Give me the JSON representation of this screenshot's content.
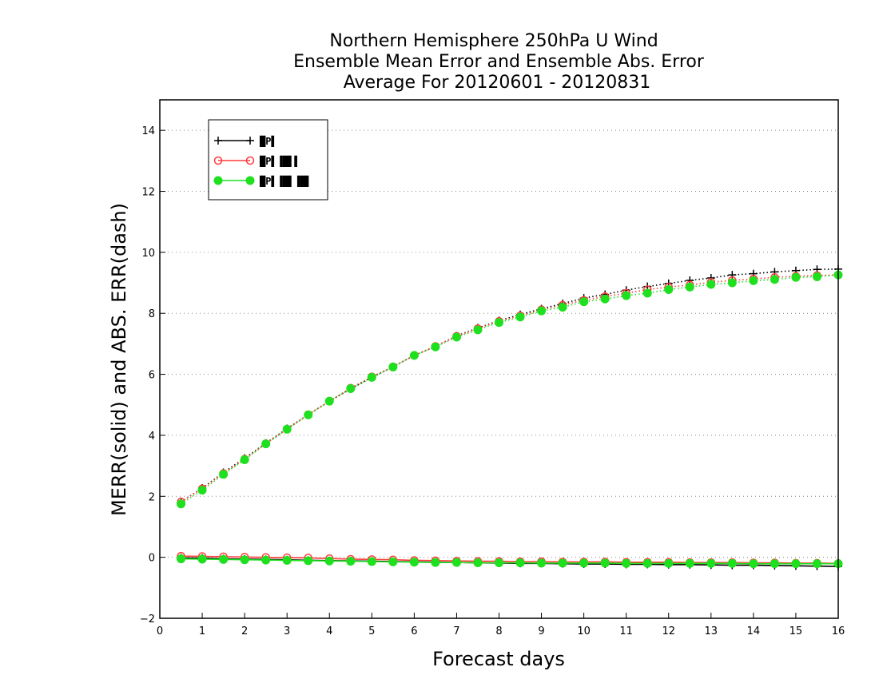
{
  "chart_data": {
    "type": "line",
    "title": [
      "Northern Hemisphere 250hPa U Wind",
      "Ensemble Mean Error and Ensemble Abs. Error",
      "Average For 20120601 - 20120831"
    ],
    "xlabel": "Forecast days",
    "ylabel": "MERR(solid) and ABS. ERR(dash)",
    "xlim": [
      0,
      16
    ],
    "ylim": [
      -2,
      15
    ],
    "xticks": [
      "0",
      "1",
      "2",
      "3",
      "4",
      "5",
      "6",
      "7",
      "8",
      "9",
      "10",
      "11",
      "12",
      "13",
      "14",
      "15",
      "16"
    ],
    "yticks": [
      "−2",
      "0",
      "2",
      "4",
      "6",
      "8",
      "10",
      "12",
      "14"
    ],
    "grid": "horizontal dotted",
    "legend_position": "top-left",
    "x": [
      0.5,
      1,
      1.5,
      2,
      2.5,
      3,
      3.5,
      4,
      4.5,
      5,
      5.5,
      6,
      6.5,
      7,
      7.5,
      8,
      8.5,
      9,
      9.5,
      10,
      10.5,
      11,
      11.5,
      12,
      12.5,
      13,
      13.5,
      14,
      14.5,
      15,
      15.5,
      16
    ],
    "series": [
      {
        "legend": "█P▌",
        "color": "#000000",
        "marker": "plus",
        "merr": [
          -0.02,
          -0.03,
          -0.05,
          -0.06,
          -0.07,
          -0.08,
          -0.1,
          -0.11,
          -0.12,
          -0.13,
          -0.14,
          -0.15,
          -0.16,
          -0.17,
          -0.18,
          -0.19,
          -0.2,
          -0.2,
          -0.21,
          -0.22,
          -0.22,
          -0.23,
          -0.23,
          -0.24,
          -0.24,
          -0.25,
          -0.26,
          -0.26,
          -0.27,
          -0.28,
          -0.29,
          -0.3
        ],
        "abs_err": [
          1.82,
          2.27,
          2.78,
          3.25,
          3.74,
          4.22,
          4.68,
          5.12,
          5.52,
          5.9,
          6.25,
          6.62,
          6.92,
          7.26,
          7.52,
          7.76,
          7.96,
          8.15,
          8.32,
          8.5,
          8.62,
          8.76,
          8.88,
          8.98,
          9.08,
          9.16,
          9.26,
          9.3,
          9.36,
          9.4,
          9.44,
          9.45
        ]
      },
      {
        "legend": "█P▌▐█▌▌",
        "color": "#ff3b3b",
        "marker": "open-circle",
        "merr": [
          0.04,
          0.03,
          0.02,
          0.01,
          0.0,
          -0.01,
          -0.02,
          -0.04,
          -0.06,
          -0.07,
          -0.08,
          -0.1,
          -0.11,
          -0.12,
          -0.13,
          -0.13,
          -0.14,
          -0.14,
          -0.15,
          -0.15,
          -0.15,
          -0.16,
          -0.16,
          -0.16,
          -0.17,
          -0.17,
          -0.17,
          -0.18,
          -0.18,
          -0.19,
          -0.19,
          -0.2
        ],
        "abs_err": [
          1.82,
          2.25,
          2.75,
          3.22,
          3.73,
          4.2,
          4.68,
          5.12,
          5.55,
          5.92,
          6.25,
          6.62,
          6.92,
          7.25,
          7.5,
          7.74,
          7.92,
          8.12,
          8.27,
          8.43,
          8.55,
          8.66,
          8.78,
          8.86,
          8.93,
          9.02,
          9.08,
          9.13,
          9.18,
          9.22,
          9.24,
          9.26
        ]
      },
      {
        "legend": "█P▌▐█▌▐█▌",
        "color": "#1ee01e",
        "marker": "filled-circle",
        "merr": [
          -0.05,
          -0.06,
          -0.07,
          -0.08,
          -0.09,
          -0.1,
          -0.11,
          -0.12,
          -0.13,
          -0.14,
          -0.15,
          -0.16,
          -0.17,
          -0.17,
          -0.18,
          -0.18,
          -0.18,
          -0.19,
          -0.19,
          -0.19,
          -0.19,
          -0.2,
          -0.2,
          -0.2,
          -0.2,
          -0.2,
          -0.2,
          -0.21,
          -0.21,
          -0.21,
          -0.21,
          -0.21
        ],
        "abs_err": [
          1.75,
          2.2,
          2.72,
          3.2,
          3.72,
          4.2,
          4.67,
          5.12,
          5.53,
          5.9,
          6.24,
          6.62,
          6.9,
          7.22,
          7.46,
          7.7,
          7.88,
          8.08,
          8.2,
          8.38,
          8.47,
          8.58,
          8.66,
          8.78,
          8.86,
          8.95,
          9.0,
          9.07,
          9.11,
          9.18,
          9.2,
          9.26
        ]
      }
    ]
  }
}
